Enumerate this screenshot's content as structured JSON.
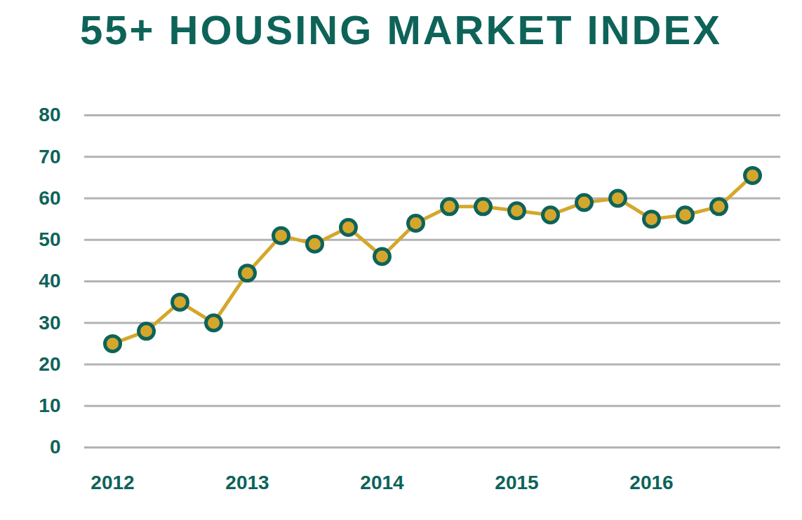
{
  "chart_data": {
    "type": "line",
    "title": "55+ HOUSING MARKET INDEX",
    "categories": [
      "2012",
      null,
      null,
      null,
      "2013",
      null,
      null,
      null,
      "2014",
      null,
      null,
      null,
      "2015",
      null,
      null,
      null,
      "2016",
      null,
      null,
      null
    ],
    "values": [
      25,
      28,
      35,
      30,
      42,
      51,
      49,
      53,
      46,
      54,
      58,
      58,
      57,
      56,
      59,
      60,
      55,
      56,
      58,
      65.5
    ],
    "color": "#d4a72c",
    "marker": "circle",
    "ylim": [
      0,
      80
    ],
    "yticks": [
      0,
      10,
      20,
      30,
      40,
      50,
      60,
      70,
      80
    ],
    "grid": true
  }
}
